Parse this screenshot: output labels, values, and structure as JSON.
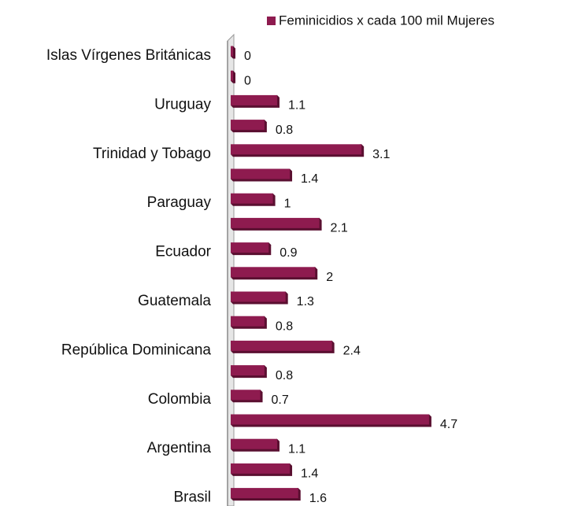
{
  "chart_data": {
    "type": "barh",
    "categories": [
      "Islas Vírgenes Británicas",
      null,
      "Uruguay",
      null,
      "Trinidad y Tobago",
      null,
      "Paraguay",
      null,
      "Ecuador",
      null,
      "Guatemala",
      null,
      "República Dominicana",
      null,
      "Colombia",
      null,
      "Argentina",
      null,
      "Brasil"
    ],
    "series": [
      {
        "name": "Feminicidios  x cada 100 mil Mujeres",
        "color": "#8e1b4f",
        "values": [
          0,
          0,
          1.1,
          0.8,
          3.1,
          1.4,
          1,
          2.1,
          0.9,
          2,
          1.3,
          0.8,
          2.4,
          0.8,
          0.7,
          4.7,
          1.1,
          1.4,
          1.6
        ]
      }
    ],
    "legend": "top-right"
  }
}
